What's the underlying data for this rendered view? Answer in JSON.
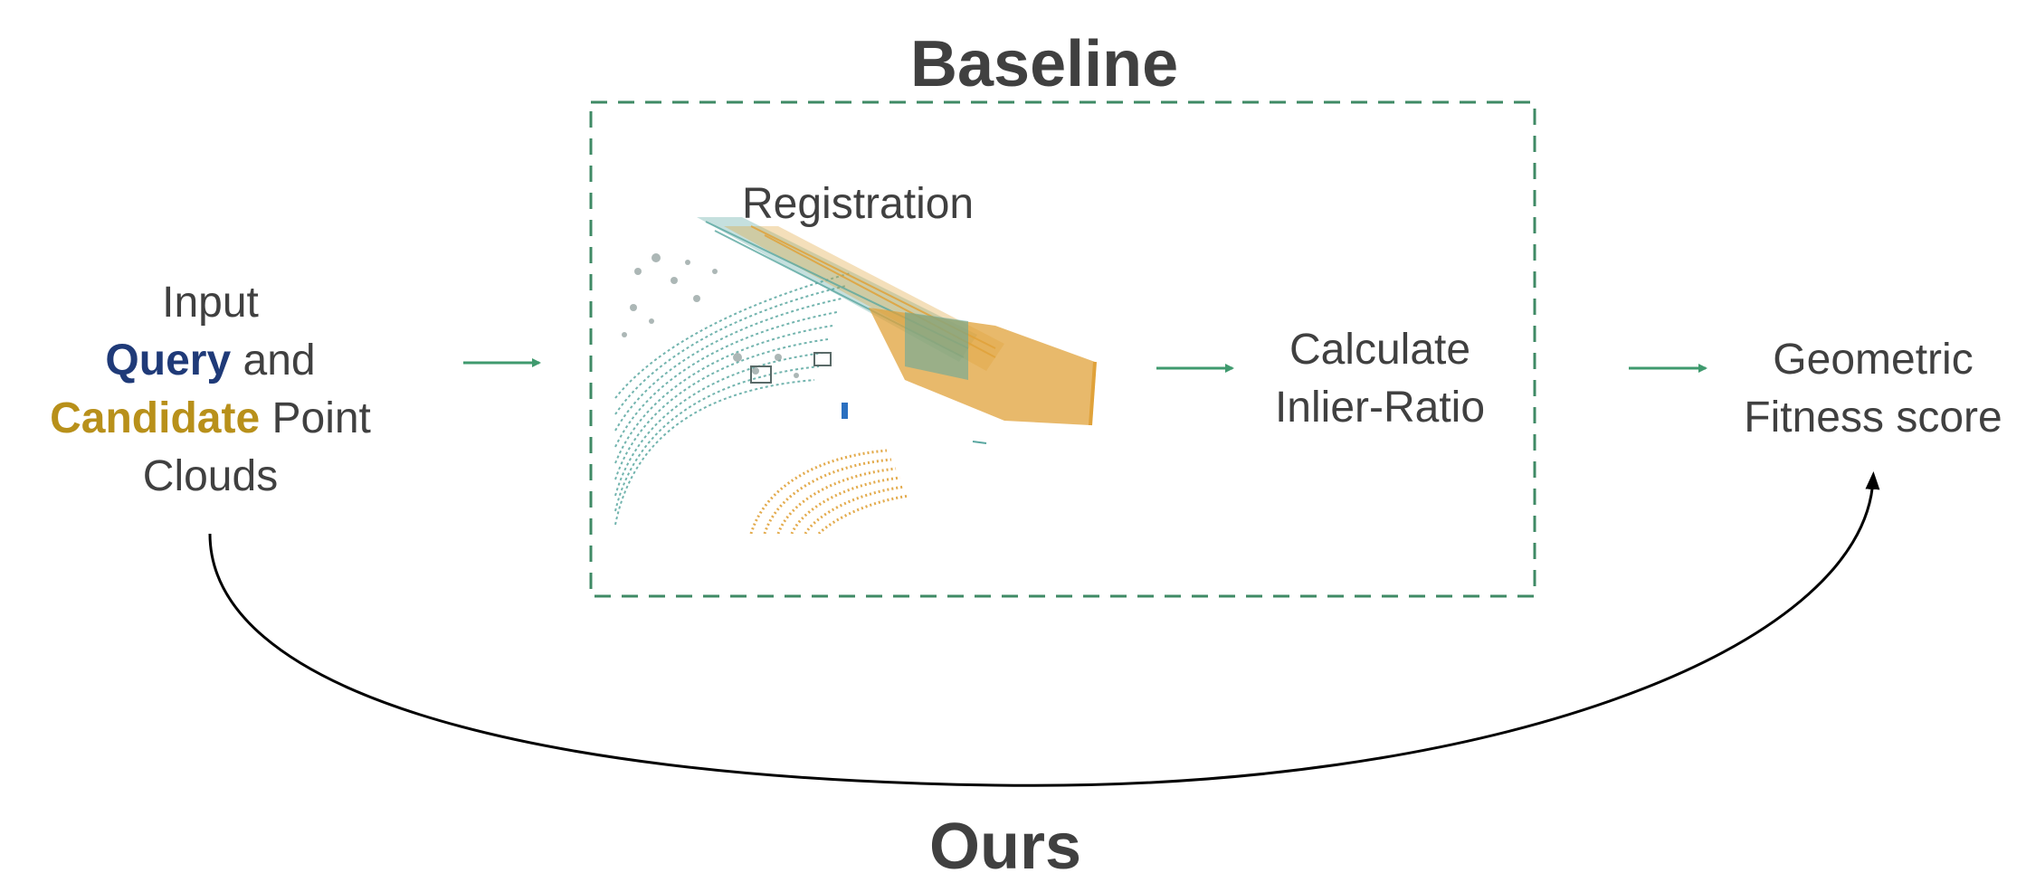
{
  "baseline_title": "Baseline",
  "ours_title": "Ours",
  "input_node": {
    "line1": "Input",
    "query_word": "Query",
    "line2_rest": " and",
    "candidate_word": "Candidate",
    "line3_rest": " Point",
    "line4": "Clouds"
  },
  "registration_label": "Registration",
  "inlier_node": {
    "line1": "Calculate",
    "line2": "Inlier-Ratio"
  },
  "output_node": {
    "line1": "Geometric",
    "line2": "Fitness score"
  },
  "colors": {
    "text": "#404040",
    "query": "#1f3a78",
    "candidate": "#b8901a",
    "arrow_green": "#3f9a6e",
    "dashed_box": "#3f8a65",
    "curve": "#000000",
    "cloud_teal": "#5aa7a0",
    "cloud_orange": "#e0a23a",
    "cloud_gray": "#8a9a98"
  }
}
